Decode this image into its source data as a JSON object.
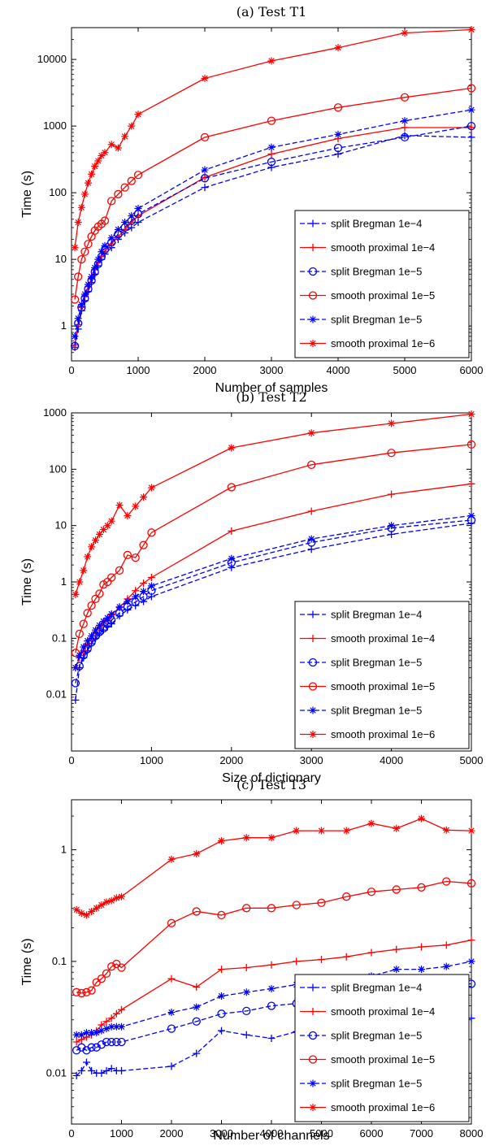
{
  "chart_data": [
    {
      "type": "line",
      "title": "(a) Test T1",
      "xlabel": "Number of samples",
      "ylabel": "Time (s)",
      "xlim": [
        0,
        6000
      ],
      "ylim": [
        0.3,
        30000
      ],
      "yscale": "log",
      "xticks": [
        0,
        1000,
        2000,
        3000,
        4000,
        5000,
        6000
      ],
      "yticks": [
        1,
        10,
        100,
        1000,
        10000
      ],
      "legend_position": "bottom-right",
      "x": [
        50,
        100,
        150,
        200,
        250,
        300,
        350,
        400,
        450,
        500,
        600,
        700,
        800,
        900,
        1000,
        2000,
        3000,
        4000,
        5000,
        6000
      ],
      "series": [
        {
          "name": "split Bregman 1e−4",
          "color": "#0000ff",
          "dash": "dashed",
          "marker": "plus",
          "values": [
            0.48,
            0.9,
            1.7,
            2.4,
            3.3,
            4.5,
            6,
            8,
            10,
            12,
            15,
            20,
            25,
            30,
            36,
            120,
            240,
            380,
            720,
            680
          ]
        },
        {
          "name": "smooth proximal 1e−4",
          "color": "#ff0000",
          "dash": "solid",
          "marker": "plus",
          "values": [
            0.52,
            1.05,
            1.9,
            2.8,
            3.9,
            5.2,
            7,
            9,
            11,
            13,
            17,
            22,
            28,
            36,
            45,
            170,
            380,
            650,
            950,
            950
          ]
        },
        {
          "name": "split Bregman 1e−5",
          "color": "#0000ff",
          "dash": "dashed",
          "marker": "circle",
          "values": [
            0.5,
            1.1,
            1.9,
            2.6,
            3.6,
            4.8,
            6.5,
            8.5,
            11,
            14,
            18,
            24,
            30,
            38,
            48,
            165,
            290,
            470,
            680,
            1000
          ]
        },
        {
          "name": "smooth proximal 1e−5",
          "color": "#ff0000",
          "dash": "solid",
          "marker": "circle",
          "values": [
            2.5,
            5.5,
            10,
            13,
            17,
            22,
            27,
            31,
            34,
            38,
            75,
            95,
            120,
            150,
            185,
            680,
            1200,
            1900,
            2700,
            3700
          ]
        },
        {
          "name": "split Bregman 1e−5",
          "color": "#0000ff",
          "dash": "dashed",
          "marker": "asterisk",
          "values": [
            0.7,
            1.3,
            2.1,
            3,
            4.2,
            5.5,
            7.5,
            10,
            13,
            16,
            21,
            28,
            36,
            45,
            58,
            220,
            480,
            750,
            1200,
            1750
          ]
        },
        {
          "name": "smooth proximal 1e−6",
          "color": "#ff0000",
          "dash": "solid",
          "marker": "asterisk",
          "values": [
            15,
            36,
            60,
            95,
            140,
            190,
            250,
            300,
            360,
            400,
            530,
            470,
            700,
            1000,
            1500,
            5200,
            9500,
            15000,
            25000,
            28000
          ]
        }
      ]
    },
    {
      "type": "line",
      "title": "(b) Test T2",
      "xlabel": "Size of dictionary",
      "ylabel": "Time (s)",
      "xlim": [
        0,
        5000
      ],
      "ylim": [
        0.001,
        1000
      ],
      "yscale": "log",
      "xticks": [
        0,
        1000,
        2000,
        3000,
        4000,
        5000
      ],
      "yticks": [
        0.01,
        0.1,
        1,
        10,
        100,
        1000
      ],
      "legend_position": "bottom-right",
      "x": [
        50,
        100,
        150,
        200,
        250,
        300,
        350,
        400,
        450,
        500,
        600,
        700,
        800,
        900,
        1000,
        2000,
        3000,
        4000,
        5000
      ],
      "series": [
        {
          "name": "split Bregman 1e−4",
          "color": "#0000ff",
          "dash": "dashed",
          "marker": "plus",
          "values": [
            0.008,
            0.03,
            0.045,
            0.06,
            0.08,
            0.1,
            0.12,
            0.14,
            0.16,
            0.18,
            0.25,
            0.32,
            0.38,
            0.45,
            0.55,
            1.8,
            3.8,
            7,
            11
          ]
        },
        {
          "name": "smooth proximal 1e−4",
          "color": "#ff0000",
          "dash": "solid",
          "marker": "plus",
          "values": [
            0.03,
            0.045,
            0.06,
            0.08,
            0.1,
            0.13,
            0.16,
            0.19,
            0.22,
            0.26,
            0.35,
            0.5,
            0.7,
            0.95,
            1.2,
            8,
            18,
            36,
            55
          ]
        },
        {
          "name": "split Bregman 1e−5",
          "color": "#0000ff",
          "dash": "dashed",
          "marker": "circle",
          "values": [
            0.016,
            0.032,
            0.05,
            0.065,
            0.085,
            0.11,
            0.13,
            0.15,
            0.18,
            0.21,
            0.28,
            0.36,
            0.44,
            0.55,
            0.7,
            2.2,
            5,
            9,
            12.5
          ]
        },
        {
          "name": "smooth proximal 1e−5",
          "color": "#ff0000",
          "dash": "solid",
          "marker": "circle",
          "values": [
            0.055,
            0.12,
            0.18,
            0.28,
            0.38,
            0.5,
            0.62,
            0.9,
            1,
            1.2,
            1.6,
            3,
            2.7,
            4.5,
            7.5,
            48,
            120,
            195,
            275
          ]
        },
        {
          "name": "split Bregman 1e−5",
          "color": "#0000ff",
          "dash": "dashed",
          "marker": "asterisk",
          "values": [
            0.03,
            0.05,
            0.07,
            0.09,
            0.11,
            0.14,
            0.17,
            0.2,
            0.23,
            0.27,
            0.36,
            0.45,
            0.55,
            0.68,
            0.85,
            2.6,
            5.8,
            10,
            15
          ]
        },
        {
          "name": "smooth proximal 1e−6",
          "color": "#ff0000",
          "dash": "solid",
          "marker": "asterisk",
          "values": [
            0.6,
            1,
            1.6,
            2.8,
            4.2,
            5.5,
            7,
            8.5,
            10,
            12,
            23,
            15,
            22,
            32,
            47,
            240,
            440,
            650,
            950
          ]
        }
      ]
    },
    {
      "type": "line",
      "title": "(c) Test T3",
      "xlabel": "Number of channels",
      "ylabel": "Time (s)",
      "xlim": [
        0,
        8000
      ],
      "ylim": [
        0.0035,
        2.8
      ],
      "yscale": "log",
      "xticks": [
        0,
        1000,
        2000,
        3000,
        4000,
        5000,
        6000,
        7000,
        8000
      ],
      "yticks": [
        0.01,
        0.1,
        1
      ],
      "legend_position": "bottom-right",
      "x": [
        100,
        200,
        300,
        400,
        500,
        600,
        700,
        800,
        900,
        1000,
        2000,
        2500,
        3000,
        3500,
        4000,
        4500,
        5000,
        5500,
        6000,
        6500,
        7000,
        7500,
        8000
      ],
      "series": [
        {
          "name": "split Bregman 1e−4",
          "color": "#0000ff",
          "dash": "dashed",
          "marker": "plus",
          "values": [
            0.0095,
            0.0105,
            0.0125,
            0.0105,
            0.01,
            0.01,
            0.0105,
            0.011,
            0.0105,
            0.0105,
            0.0115,
            0.015,
            0.024,
            0.022,
            0.0205,
            0.0235,
            0.024,
            0.026,
            0.0275,
            0.0295,
            0.0315,
            0.034,
            0.031
          ]
        },
        {
          "name": "smooth proximal 1e−4",
          "color": "#ff0000",
          "dash": "solid",
          "marker": "plus",
          "values": [
            0.019,
            0.02,
            0.021,
            0.022,
            0.024,
            0.027,
            0.029,
            0.031,
            0.034,
            0.037,
            0.07,
            0.059,
            0.085,
            0.088,
            0.093,
            0.1,
            0.104,
            0.11,
            0.12,
            0.128,
            0.135,
            0.14,
            0.155
          ]
        },
        {
          "name": "split Bregman 1e−5",
          "color": "#0000ff",
          "dash": "dashed",
          "marker": "circle",
          "values": [
            0.016,
            0.017,
            0.016,
            0.017,
            0.017,
            0.018,
            0.019,
            0.019,
            0.019,
            0.019,
            0.025,
            0.029,
            0.034,
            0.036,
            0.04,
            0.042,
            0.045,
            0.048,
            0.05,
            0.051,
            0.053,
            0.063,
            0.063
          ]
        },
        {
          "name": "smooth proximal 1e−5",
          "color": "#ff0000",
          "dash": "solid",
          "marker": "circle",
          "values": [
            0.053,
            0.052,
            0.053,
            0.055,
            0.065,
            0.07,
            0.078,
            0.09,
            0.095,
            0.088,
            0.22,
            0.28,
            0.26,
            0.3,
            0.3,
            0.32,
            0.335,
            0.38,
            0.42,
            0.44,
            0.46,
            0.52,
            0.5
          ]
        },
        {
          "name": "split Bregman 1e−5",
          "color": "#0000ff",
          "dash": "dashed",
          "marker": "asterisk",
          "values": [
            0.022,
            0.022,
            0.023,
            0.023,
            0.023,
            0.024,
            0.025,
            0.026,
            0.026,
            0.026,
            0.035,
            0.039,
            0.049,
            0.053,
            0.057,
            0.062,
            0.063,
            0.068,
            0.074,
            0.085,
            0.085,
            0.09,
            0.1
          ]
        },
        {
          "name": "smooth proximal 1e−6",
          "color": "#ff0000",
          "dash": "solid",
          "marker": "asterisk",
          "values": [
            0.29,
            0.27,
            0.26,
            0.28,
            0.3,
            0.32,
            0.34,
            0.35,
            0.37,
            0.38,
            0.82,
            0.92,
            1.2,
            1.28,
            1.28,
            1.48,
            1.48,
            1.48,
            1.72,
            1.55,
            1.9,
            1.5,
            1.48
          ]
        }
      ]
    }
  ]
}
